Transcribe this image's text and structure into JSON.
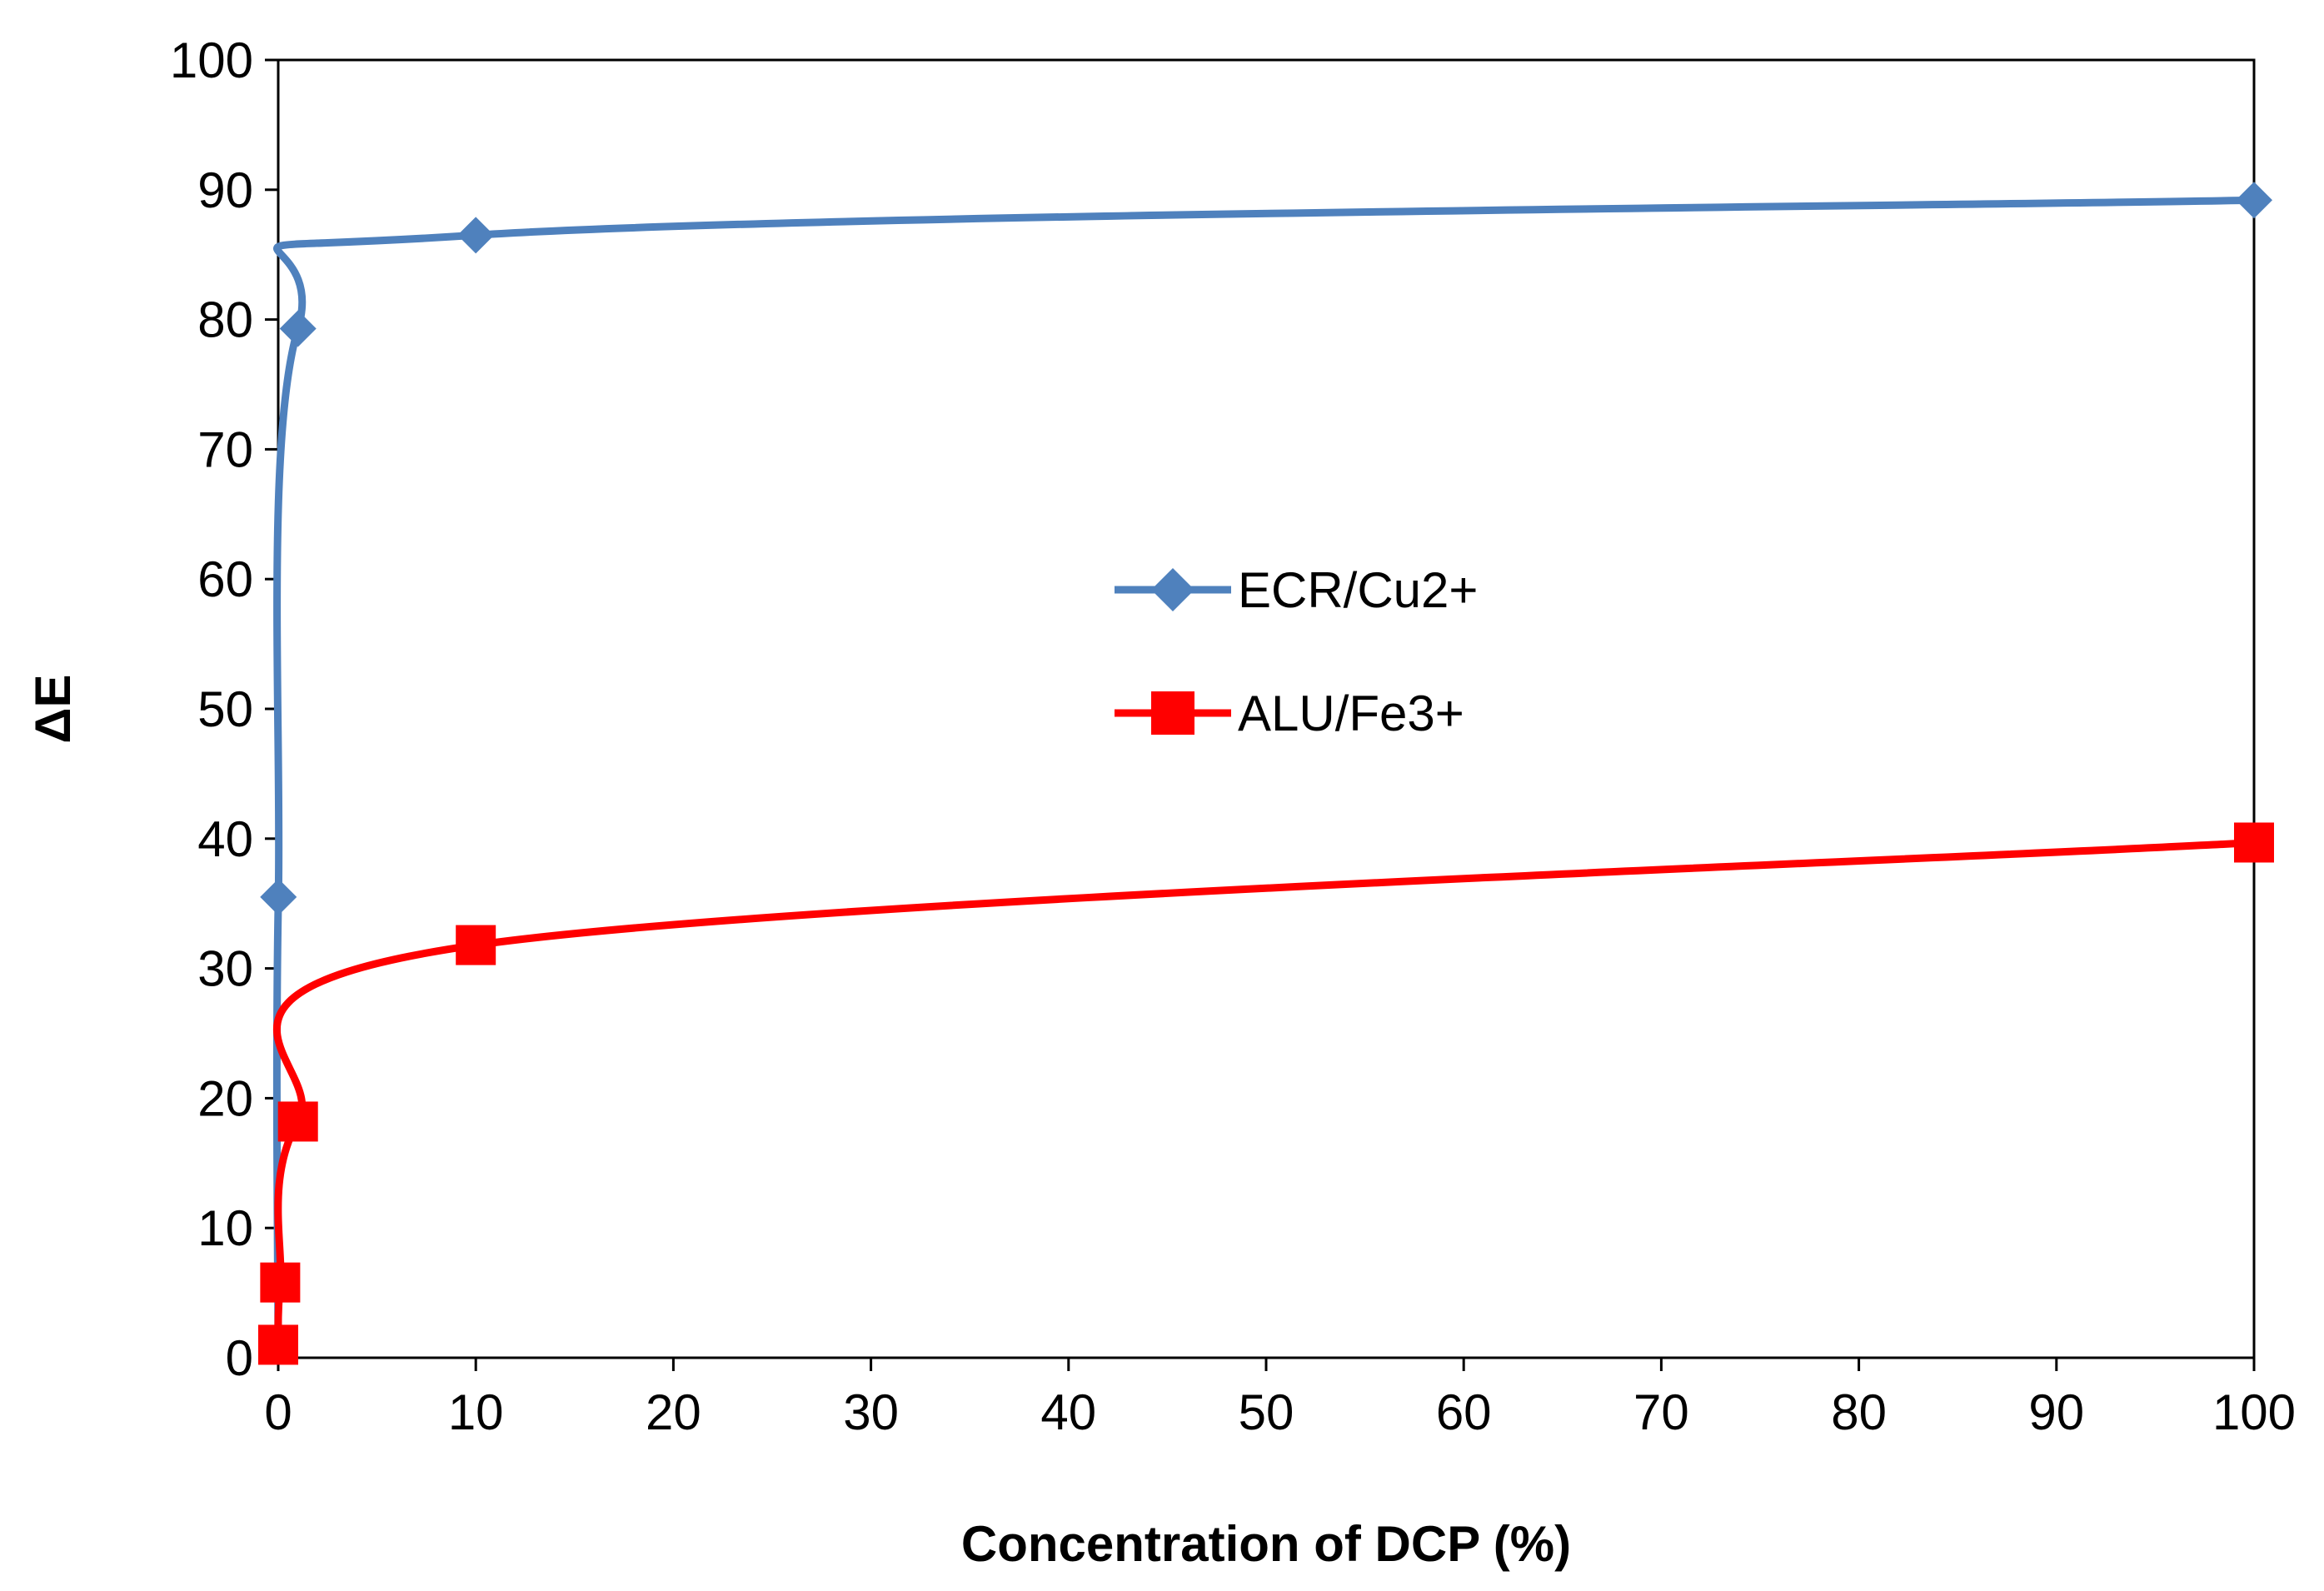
{
  "chart_data": {
    "type": "scatter",
    "title": "",
    "xlabel": "Concentration of DCP (%)",
    "ylabel": "ΔE",
    "xlim": [
      0,
      100
    ],
    "ylim": [
      0,
      100
    ],
    "xticks": [
      0,
      10,
      20,
      30,
      40,
      50,
      60,
      70,
      80,
      90,
      100
    ],
    "yticks": [
      0,
      10,
      20,
      30,
      40,
      50,
      60,
      70,
      80,
      90,
      100
    ],
    "xtick_labels": [
      "0",
      "10",
      "20",
      "30",
      "40",
      "50",
      "60",
      "70",
      "80",
      "90",
      "100"
    ],
    "ytick_labels": [
      "0",
      "10",
      "20",
      "30",
      "40",
      "50",
      "60",
      "70",
      "80",
      "90",
      "100"
    ],
    "grid": false,
    "legend_position": "center",
    "series": [
      {
        "name": "ECR/Cu2+",
        "color": "#4F81BD",
        "marker": "diamond",
        "x": [
          0,
          0.01,
          1,
          10,
          100
        ],
        "y": [
          0,
          35.5,
          79.3,
          86.5,
          89.2
        ]
      },
      {
        "name": "ALU/Fe3+",
        "color": "#FF0000",
        "marker": "square",
        "x": [
          0,
          0.1,
          1,
          10,
          100
        ],
        "y": [
          1,
          5.8,
          18.2,
          31.8,
          39.7
        ]
      }
    ]
  }
}
